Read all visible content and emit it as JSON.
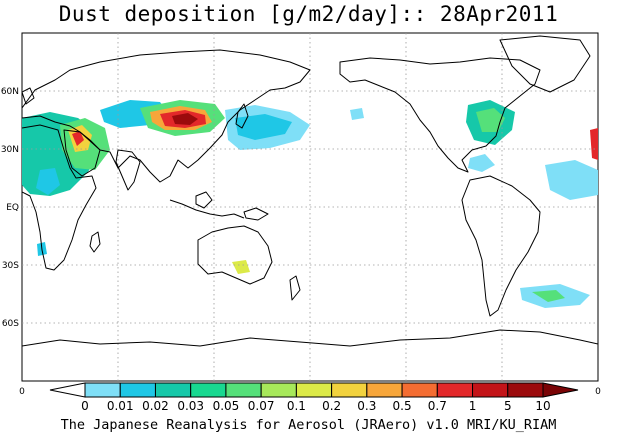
{
  "title": "Dust deposition [g/m2/day]:: 28Apr2011",
  "credit": "The Japanese Reanalysis for Aerosol (JRAero) v1.0 MRI/KU_RIAM",
  "map": {
    "lat_labels": [
      "60N",
      "30N",
      "EQ",
      "30S",
      "60S"
    ],
    "left_corner_label": "0",
    "right_corner_label": "0"
  },
  "colorbar": {
    "labels": [
      "0",
      "0.01",
      "0.02",
      "0.03",
      "0.05",
      "0.07",
      "0.1",
      "0.2",
      "0.3",
      "0.5",
      "0.7",
      "1",
      "5",
      "10"
    ],
    "colors": [
      "#ffffff",
      "#7fdff7",
      "#1fc7e6",
      "#16c8a9",
      "#18d890",
      "#55e07a",
      "#a7e85a",
      "#dcea48",
      "#f2d23e",
      "#f7a63a",
      "#f46d32",
      "#e3282a",
      "#c31418",
      "#9b0a0c",
      "#7a0406"
    ]
  }
}
